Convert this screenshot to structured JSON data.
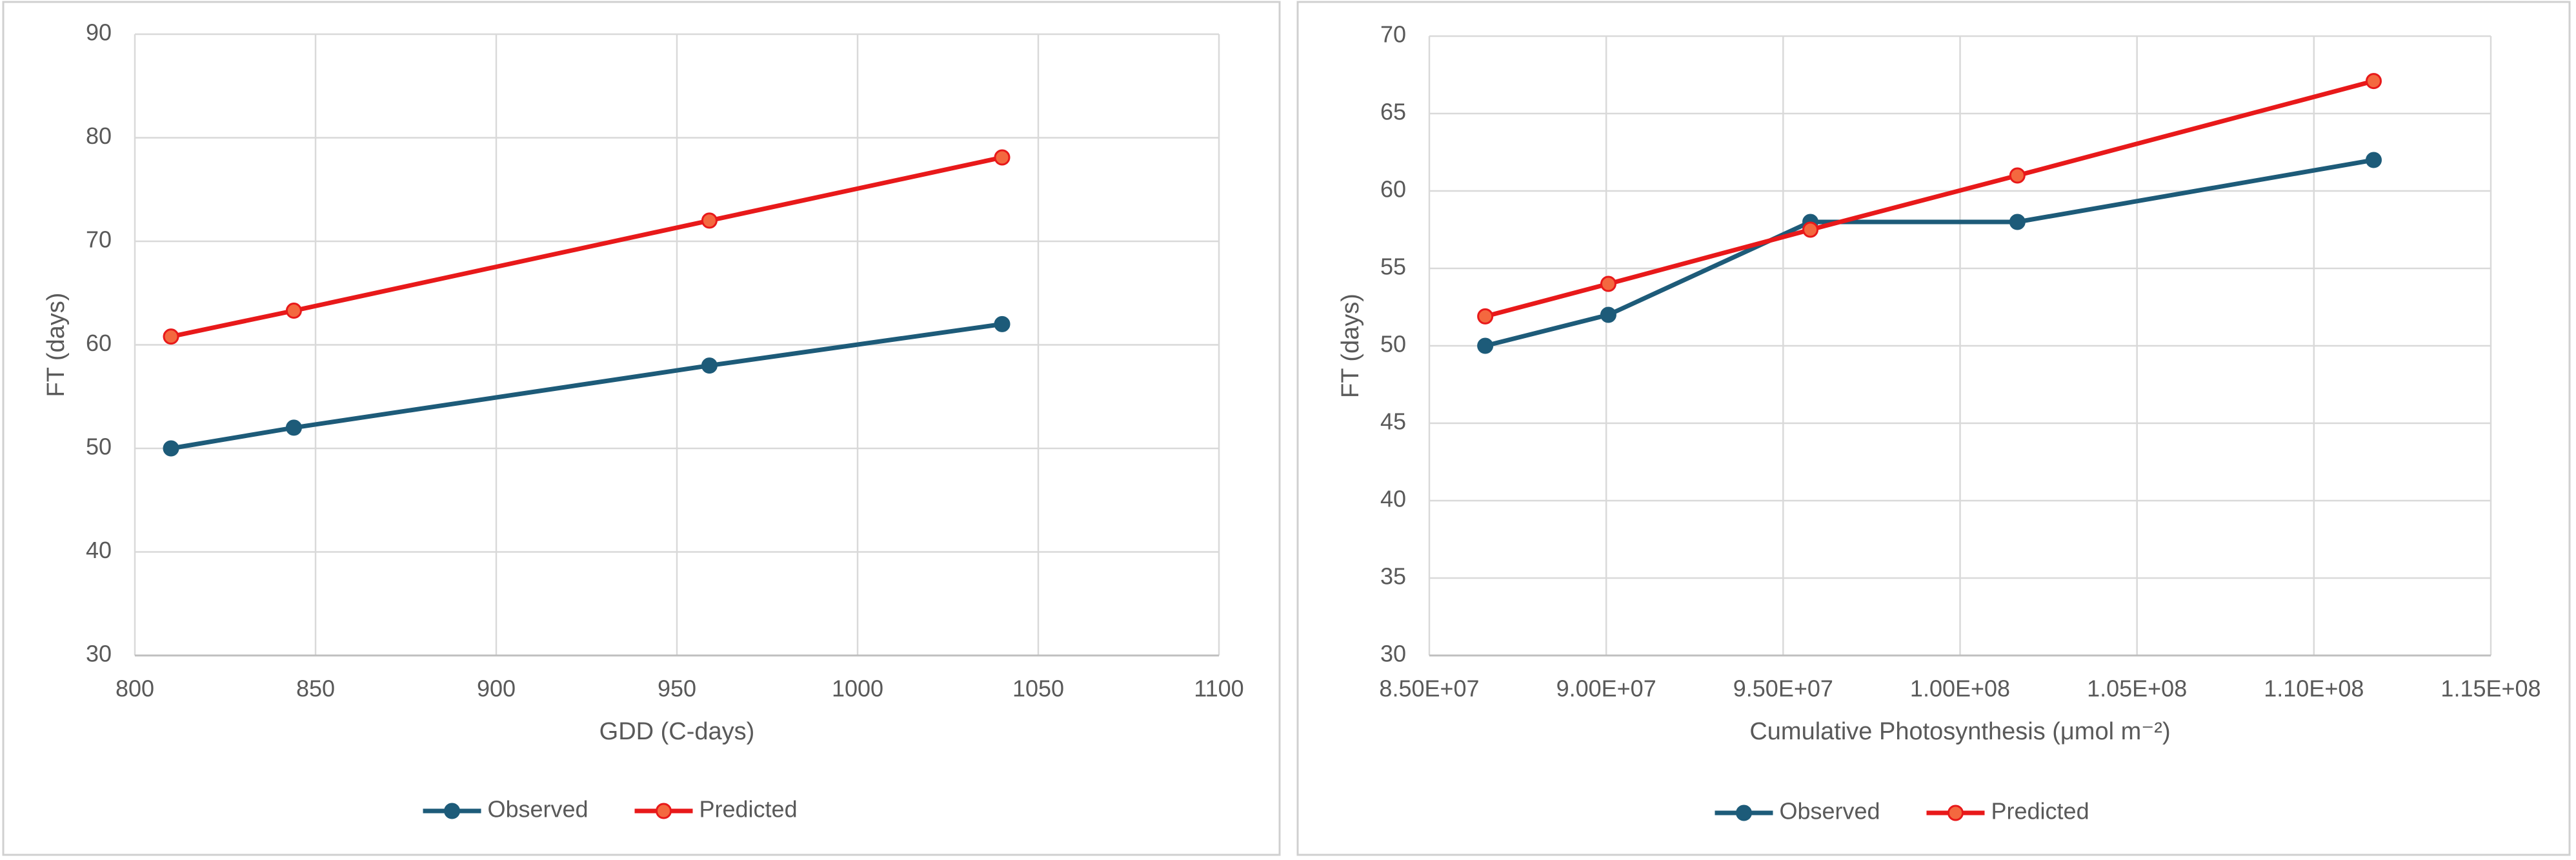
{
  "chart_data": [
    {
      "type": "line",
      "x_label": "GDD (C-days)",
      "y_label": "FT (days)",
      "xlim": [
        800,
        1100
      ],
      "xticks": [
        800,
        850,
        900,
        950,
        1000,
        1050,
        1100
      ],
      "ylim": [
        30,
        90
      ],
      "yticks": [
        30,
        40,
        50,
        60,
        70,
        80,
        90
      ],
      "grid": true,
      "legend": "bottom",
      "x": [
        810,
        844,
        959,
        1040
      ],
      "series": [
        {
          "name": "Observed",
          "color": "#1d5b79",
          "marker_color": "#1d5b79",
          "values": [
            50,
            52,
            58,
            62
          ]
        },
        {
          "name": "Predicted",
          "color": "#e8191a",
          "marker_color": "#f4683f",
          "values": [
            60.8,
            63.3,
            72,
            78.1
          ]
        }
      ]
    },
    {
      "type": "line",
      "x_label": "Cumulative Photosynthesis (μmol m⁻²)",
      "y_label": "FT (days)",
      "xlim": [
        85000000,
        115000000
      ],
      "xticks": [
        {
          "value": 85000000,
          "label": "8.50E+07"
        },
        {
          "value": 90000000,
          "label": "9.00E+07"
        },
        {
          "value": 95000000,
          "label": "9.50E+07"
        },
        {
          "value": 100000000,
          "label": "1.00E+08"
        },
        {
          "value": 105000000,
          "label": "1.05E+08"
        },
        {
          "value": 110000000,
          "label": "1.10E+08"
        },
        {
          "value": 115000000,
          "label": "1.15E+08"
        }
      ],
      "ylim": [
        30,
        70
      ],
      "yticks": [
        30,
        35,
        40,
        45,
        50,
        55,
        60,
        65,
        70
      ],
      "grid": true,
      "legend": "bottom",
      "x": [
        86580000,
        90060000,
        95770000,
        101620000,
        111690000
      ],
      "series": [
        {
          "name": "Observed",
          "color": "#1d5b79",
          "marker_color": "#1d5b79",
          "values": [
            50,
            52,
            58,
            58,
            62
          ]
        },
        {
          "name": "Predicted",
          "color": "#e8191a",
          "marker_color": "#f4683f",
          "values": [
            51.9,
            54,
            57.5,
            61,
            67.1
          ]
        }
      ]
    }
  ]
}
